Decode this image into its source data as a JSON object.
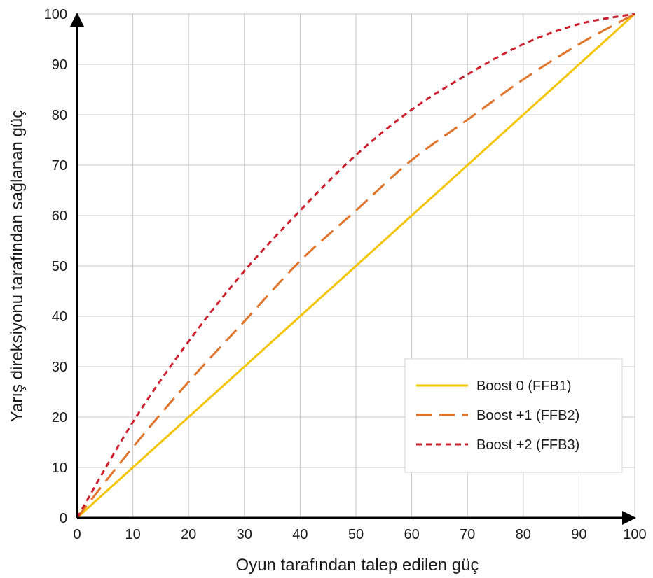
{
  "chart_data": {
    "type": "line",
    "title": "",
    "xlabel": "Oyun tarafından talep edilen güç",
    "ylabel": "Yarış direksiyonu tarafından sağlanan güç",
    "xlim": [
      0,
      100
    ],
    "ylim": [
      0,
      100
    ],
    "xticks": [
      "0",
      "10",
      "20",
      "30",
      "40",
      "50",
      "60",
      "70",
      "80",
      "90",
      "100"
    ],
    "yticks": [
      "0",
      "10",
      "20",
      "30",
      "40",
      "50",
      "60",
      "70",
      "80",
      "90",
      "100"
    ],
    "grid": true,
    "legend_position": "bottom-right",
    "x": [
      0,
      10,
      20,
      30,
      40,
      50,
      60,
      70,
      80,
      90,
      100
    ],
    "series": [
      {
        "name": "Boost 0 (FFB1)",
        "color": "#f5c400",
        "style": "solid",
        "values": [
          0,
          10,
          20,
          30,
          40,
          50,
          60,
          70,
          80,
          90,
          100
        ]
      },
      {
        "name": "Boost +1 (FFB2)",
        "color": "#e0742a",
        "style": "dashed",
        "values": [
          0,
          14,
          27,
          39,
          51,
          61,
          71,
          79,
          87,
          94,
          100
        ]
      },
      {
        "name": "Boost +2 (FFB3)",
        "color": "#cc1f2e",
        "style": "dotted",
        "values": [
          0,
          19,
          35,
          49,
          61,
          72,
          81,
          88,
          94,
          98,
          100
        ]
      }
    ]
  }
}
